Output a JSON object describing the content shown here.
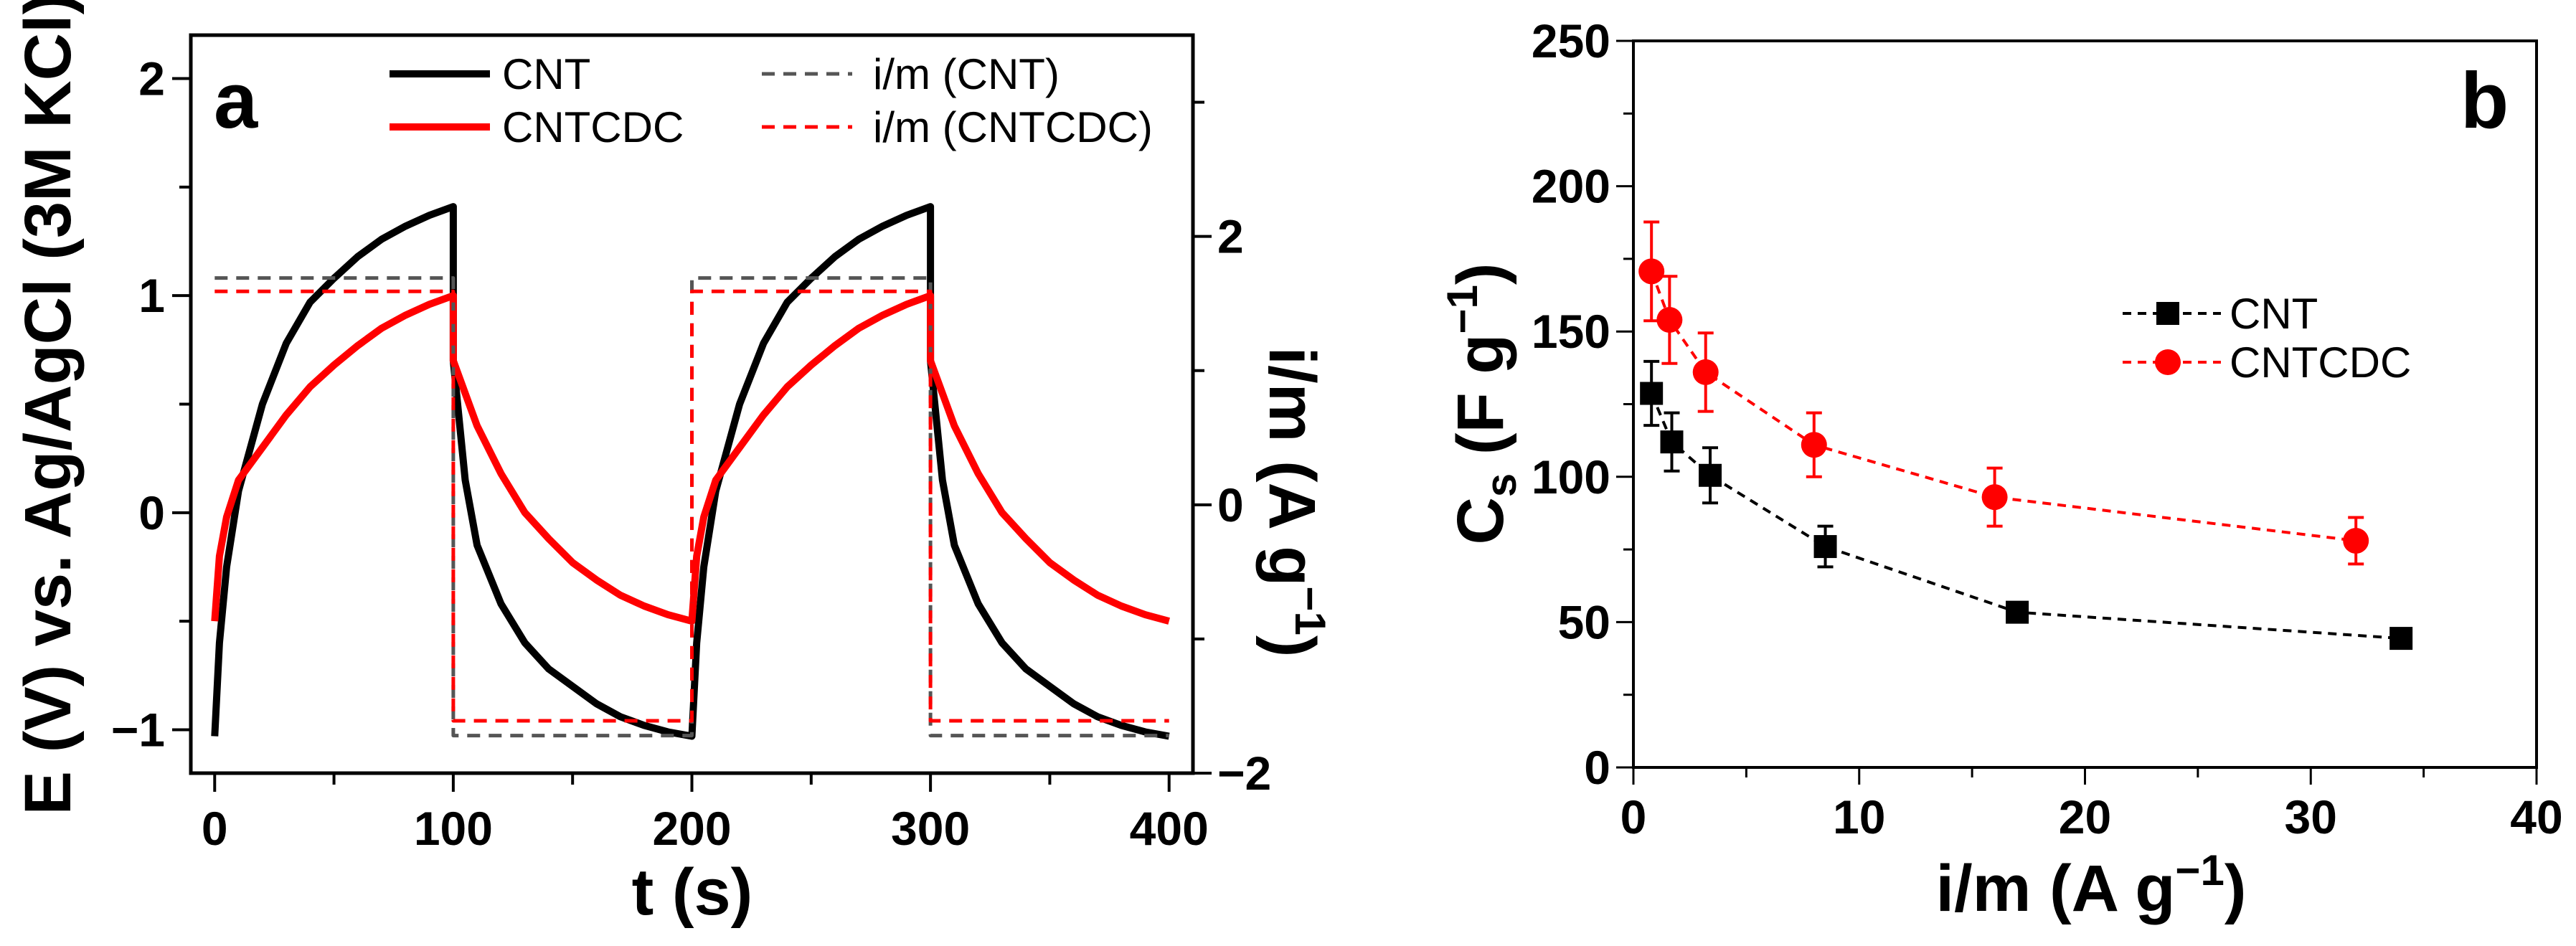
{
  "chart_data": [
    {
      "panel": "a",
      "type": "line",
      "xlabel": "t (s)",
      "ylabel": "E (V) vs. Ag/AgCl (3M KCl)",
      "ylabel_right": {
        "main": "i/m (A g",
        "sup": "−1",
        "end": ")"
      },
      "xlim": [
        -10,
        410
      ],
      "ylim": [
        -1.2,
        2.2
      ],
      "ylim_right": [
        -2,
        3.5
      ],
      "xticks": [
        0,
        100,
        200,
        300,
        400
      ],
      "yticks": [
        -1,
        0,
        1,
        2
      ],
      "yticks_right": [
        -2,
        0,
        2
      ],
      "yticks_right_labels": [
        "−2",
        "0",
        "2"
      ],
      "yticks_labels": [
        "−1",
        "0",
        "1",
        "2"
      ],
      "legend_position": "top",
      "series": [
        {
          "name": "CNT",
          "axis": "left",
          "color": "#000000",
          "style": "solid",
          "t": [
            0,
            2,
            5,
            10,
            20,
            30,
            40,
            50,
            60,
            70,
            80,
            90,
            100,
            100,
            105,
            110,
            120,
            130,
            140,
            150,
            160,
            170,
            180,
            190,
            200,
            202,
            205,
            210,
            220,
            230,
            240,
            250,
            260,
            270,
            280,
            290,
            300,
            300,
            305,
            310,
            320,
            330,
            340,
            350,
            360,
            370,
            380,
            390,
            400
          ],
          "E": [
            -1.03,
            -0.6,
            -0.25,
            0.1,
            0.5,
            0.78,
            0.97,
            1.08,
            1.18,
            1.26,
            1.32,
            1.37,
            1.41,
            0.7,
            0.15,
            -0.15,
            -0.42,
            -0.6,
            -0.72,
            -0.8,
            -0.88,
            -0.94,
            -0.98,
            -1.01,
            -1.03,
            -0.6,
            -0.25,
            0.1,
            0.5,
            0.78,
            0.97,
            1.08,
            1.18,
            1.26,
            1.32,
            1.37,
            1.41,
            0.7,
            0.15,
            -0.15,
            -0.42,
            -0.6,
            -0.72,
            -0.8,
            -0.88,
            -0.94,
            -0.98,
            -1.01,
            -1.03
          ]
        },
        {
          "name": "CNTCDC",
          "axis": "left",
          "color": "#ff0000",
          "style": "solid",
          "t": [
            0,
            2,
            5,
            10,
            20,
            30,
            40,
            50,
            60,
            70,
            80,
            90,
            100,
            100,
            110,
            120,
            130,
            140,
            150,
            160,
            170,
            180,
            190,
            200,
            202,
            205,
            210,
            220,
            230,
            240,
            250,
            260,
            270,
            280,
            290,
            300,
            300,
            310,
            320,
            330,
            340,
            350,
            360,
            370,
            380,
            390,
            400
          ],
          "E": [
            -0.5,
            -0.2,
            -0.02,
            0.15,
            0.3,
            0.45,
            0.58,
            0.68,
            0.77,
            0.85,
            0.91,
            0.96,
            1.0,
            0.7,
            0.4,
            0.18,
            0.0,
            -0.12,
            -0.23,
            -0.31,
            -0.38,
            -0.43,
            -0.47,
            -0.5,
            -0.2,
            -0.02,
            0.15,
            0.3,
            0.45,
            0.58,
            0.68,
            0.77,
            0.85,
            0.91,
            0.96,
            1.0,
            0.7,
            0.4,
            0.18,
            0.0,
            -0.12,
            -0.23,
            -0.31,
            -0.38,
            -0.43,
            -0.47,
            -0.5
          ]
        },
        {
          "name": "i/m (CNT)",
          "axis": "right",
          "color": "#555555",
          "style": "dashed",
          "t": [
            0,
            100,
            100,
            200,
            200,
            300,
            300,
            400
          ],
          "E": [
            1.69,
            1.69,
            -1.72,
            -1.72,
            1.69,
            1.69,
            -1.72,
            -1.72
          ]
        },
        {
          "name": "i/m (CNTCDC)",
          "axis": "right",
          "color": "#ff0000",
          "style": "dashed",
          "t": [
            0,
            100,
            100,
            200,
            200,
            300,
            300,
            400
          ],
          "E": [
            1.59,
            1.59,
            -1.61,
            -1.61,
            1.59,
            1.59,
            -1.61,
            -1.61
          ]
        }
      ]
    },
    {
      "panel": "b",
      "type": "scatter",
      "xlabel": {
        "main": "i/m (A g",
        "sup": "−1",
        "end": ")"
      },
      "ylabel": {
        "main": "C",
        "sub": "s",
        "mid": " (F g",
        "sup": "−1",
        "end": ")"
      },
      "xlim": [
        0,
        40
      ],
      "ylim": [
        0,
        250
      ],
      "xticks": [
        0,
        10,
        20,
        30,
        40
      ],
      "yticks": [
        0,
        50,
        100,
        150,
        200,
        250
      ],
      "legend_position": "center-right",
      "series": [
        {
          "name": "CNT",
          "color": "#000000",
          "marker": "square",
          "x": [
            0.8,
            1.7,
            3.4,
            8.5,
            17,
            34
          ],
          "y": [
            128.7,
            112,
            100.5,
            76,
            53.4,
            44.4
          ],
          "err": [
            11,
            10,
            9.5,
            7,
            3,
            2
          ]
        },
        {
          "name": "CNTCDC",
          "color": "#ff0000",
          "marker": "circle",
          "x": [
            0.8,
            1.6,
            3.2,
            8,
            16,
            32
          ],
          "y": [
            170.7,
            154,
            136,
            111,
            93,
            78
          ],
          "err": [
            17,
            15,
            13.5,
            11,
            10,
            8
          ]
        }
      ]
    }
  ],
  "panel_labels": [
    "a",
    "b"
  ]
}
